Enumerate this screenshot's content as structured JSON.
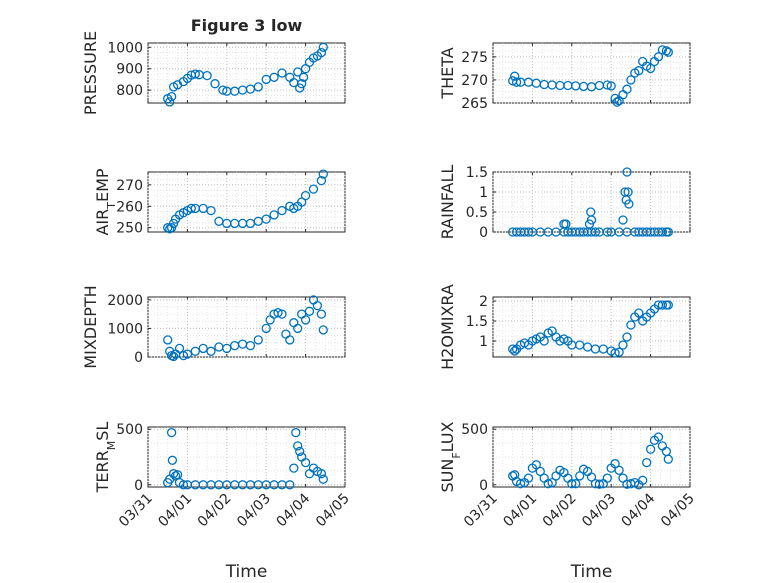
{
  "figure": {
    "title": "Figure 3 low",
    "marker_color": "#0072BD",
    "x_tick_labels": [
      "03/31",
      "04/01",
      "04/02",
      "04/03",
      "04/04",
      "04/05"
    ],
    "x_label": "Time"
  },
  "chart_data": [
    {
      "type": "scatter",
      "ylabel": "PRESSURE",
      "title": "Figure 3 low",
      "x_unit": "days since 03/31",
      "xlim": [
        0,
        5
      ],
      "ylim": [
        740,
        1020
      ],
      "yticks": [
        800,
        900,
        1000
      ],
      "yticklabels": [
        "800",
        "900",
        "1000"
      ],
      "xticklabels_shown": false,
      "grid": true,
      "series": [
        {
          "x": [
            0.5,
            0.55,
            0.6,
            0.65,
            0.75,
            0.9,
            1.0,
            1.1,
            1.2,
            1.3,
            1.5,
            1.7,
            1.9,
            2.0,
            2.2,
            2.4,
            2.6,
            2.8,
            3.0,
            3.2,
            3.4,
            3.6,
            3.7,
            3.8,
            3.85,
            3.9,
            3.95,
            4.0,
            4.1,
            4.2,
            4.3,
            4.4,
            4.45
          ],
          "y": [
            760,
            745,
            770,
            815,
            825,
            840,
            855,
            870,
            875,
            872,
            868,
            830,
            800,
            795,
            795,
            800,
            805,
            815,
            850,
            860,
            880,
            860,
            835,
            885,
            810,
            830,
            860,
            900,
            930,
            950,
            960,
            975,
            1000
          ]
        }
      ]
    },
    {
      "type": "scatter",
      "ylabel": "THETA",
      "xlim": [
        0,
        5
      ],
      "ylim": [
        265,
        278
      ],
      "yticks": [
        265,
        270,
        275
      ],
      "yticklabels": [
        "265",
        "270",
        "275"
      ],
      "xticklabels_shown": false,
      "grid": true,
      "series": [
        {
          "x": [
            0.5,
            0.55,
            0.6,
            0.7,
            0.9,
            1.1,
            1.3,
            1.5,
            1.7,
            1.9,
            2.1,
            2.3,
            2.5,
            2.7,
            2.9,
            3.0,
            3.1,
            3.15,
            3.2,
            3.3,
            3.4,
            3.5,
            3.6,
            3.7,
            3.8,
            3.9,
            4.0,
            4.1,
            4.2,
            4.3,
            4.4,
            4.45
          ],
          "y": [
            269.8,
            270.8,
            269.5,
            269.5,
            269.5,
            269.3,
            269.0,
            268.9,
            268.8,
            268.8,
            268.7,
            268.6,
            268.5,
            268.8,
            268.9,
            268.7,
            266.0,
            265.2,
            265.5,
            266.8,
            268.0,
            270.0,
            271.5,
            272.0,
            274.0,
            273.0,
            272.5,
            274.0,
            275.0,
            276.5,
            276.3,
            276.0
          ]
        }
      ]
    },
    {
      "type": "scatter",
      "ylabel": "AIR_TEMP",
      "xlim": [
        0,
        5
      ],
      "ylim": [
        248,
        276
      ],
      "yticks": [
        250,
        260,
        270
      ],
      "yticklabels": [
        "250",
        "260",
        "270"
      ],
      "xticklabels_shown": false,
      "grid": true,
      "series": [
        {
          "x": [
            0.5,
            0.55,
            0.6,
            0.65,
            0.7,
            0.8,
            0.9,
            1.0,
            1.1,
            1.2,
            1.4,
            1.6,
            1.8,
            2.0,
            2.2,
            2.4,
            2.6,
            2.8,
            3.0,
            3.2,
            3.4,
            3.6,
            3.7,
            3.8,
            3.9,
            4.0,
            4.2,
            4.4,
            4.45
          ],
          "y": [
            250,
            249.5,
            250,
            252,
            254,
            256,
            257,
            258,
            259,
            259,
            259,
            258,
            253,
            252,
            252,
            252,
            252,
            253,
            254,
            256,
            258,
            260,
            259,
            260,
            262,
            265,
            268,
            272,
            275
          ]
        }
      ]
    },
    {
      "type": "scatter",
      "ylabel": "RAINFALL",
      "xlim": [
        0,
        5
      ],
      "ylim": [
        0,
        1.5
      ],
      "yticks": [
        0,
        0.5,
        1,
        1.5
      ],
      "yticklabels": [
        "0",
        "0.5",
        "1",
        "1.5"
      ],
      "xticklabels_shown": false,
      "grid": true,
      "series": [
        {
          "x": [
            0.5,
            0.6,
            0.7,
            0.8,
            0.9,
            1.0,
            1.2,
            1.4,
            1.6,
            1.8,
            1.9,
            2.0,
            2.1,
            2.2,
            2.3,
            2.4,
            2.5,
            2.6,
            2.7,
            2.9,
            3.0,
            3.2,
            3.4,
            3.6,
            3.7,
            3.8,
            3.9,
            4.0,
            4.1,
            4.2,
            4.3,
            4.4,
            4.45,
            1.8,
            1.85,
            2.45,
            2.48,
            2.5,
            3.3,
            3.35,
            3.38,
            3.4,
            3.43,
            3.45
          ],
          "y": [
            0,
            0,
            0,
            0,
            0,
            0,
            0,
            0,
            0,
            0,
            0,
            0,
            0,
            0,
            0,
            0,
            0,
            0,
            0,
            0,
            0,
            0,
            0,
            0,
            0,
            0,
            0,
            0,
            0,
            0,
            0,
            0,
            0,
            0.2,
            0.2,
            0.2,
            0.5,
            0.3,
            0.3,
            1.0,
            0.8,
            1.5,
            1.0,
            0.7
          ]
        }
      ]
    },
    {
      "type": "scatter",
      "ylabel": "MIXDEPTH",
      "xlim": [
        0,
        5
      ],
      "ylim": [
        0,
        2100
      ],
      "yticks": [
        0,
        1000,
        2000
      ],
      "yticklabels": [
        "0",
        "1000",
        "2000"
      ],
      "xticklabels_shown": false,
      "grid": true,
      "series": [
        {
          "x": [
            0.5,
            0.55,
            0.6,
            0.65,
            0.7,
            0.8,
            0.9,
            1.0,
            1.2,
            1.4,
            1.6,
            1.8,
            2.0,
            2.2,
            2.4,
            2.6,
            2.8,
            3.0,
            3.1,
            3.2,
            3.3,
            3.4,
            3.5,
            3.6,
            3.7,
            3.8,
            3.9,
            4.0,
            4.1,
            4.2,
            4.3,
            4.4,
            4.45
          ],
          "y": [
            600,
            200,
            50,
            20,
            100,
            300,
            50,
            100,
            200,
            300,
            200,
            350,
            300,
            400,
            450,
            400,
            600,
            1000,
            1300,
            1500,
            1550,
            1500,
            800,
            600,
            1200,
            1000,
            1500,
            1300,
            1600,
            2000,
            1800,
            1500,
            950
          ]
        }
      ]
    },
    {
      "type": "scatter",
      "ylabel": "H2OMIXRA",
      "xlim": [
        0,
        5
      ],
      "ylim": [
        0.6,
        2.1
      ],
      "yticks": [
        1,
        1.5,
        2
      ],
      "yticklabels": [
        "1",
        "1.5",
        "2"
      ],
      "xticklabels_shown": false,
      "grid": true,
      "series": [
        {
          "x": [
            0.5,
            0.55,
            0.6,
            0.7,
            0.8,
            0.9,
            1.0,
            1.1,
            1.2,
            1.3,
            1.4,
            1.5,
            1.6,
            1.7,
            1.8,
            1.9,
            2.0,
            2.2,
            2.4,
            2.6,
            2.8,
            3.0,
            3.1,
            3.2,
            3.3,
            3.4,
            3.5,
            3.6,
            3.7,
            3.8,
            3.9,
            4.0,
            4.1,
            4.2,
            4.3,
            4.4,
            4.45
          ],
          "y": [
            0.8,
            0.75,
            0.8,
            0.9,
            0.95,
            0.9,
            1.0,
            1.05,
            1.1,
            1.0,
            1.2,
            1.25,
            1.1,
            1.0,
            1.05,
            1.0,
            0.9,
            0.9,
            0.85,
            0.8,
            0.8,
            0.75,
            0.7,
            0.72,
            0.9,
            1.1,
            1.4,
            1.6,
            1.7,
            1.5,
            1.6,
            1.7,
            1.8,
            1.9,
            1.9,
            1.9,
            1.9
          ]
        }
      ]
    },
    {
      "type": "scatter",
      "ylabel": "TERR_MSL",
      "xlim": [
        0,
        5
      ],
      "ylim": [
        -20,
        520
      ],
      "yticks": [
        0,
        500
      ],
      "yticklabels": [
        "0",
        "500"
      ],
      "xticklabels_shown": true,
      "xlabel": "Time",
      "grid": true,
      "series": [
        {
          "x": [
            0.5,
            0.55,
            0.6,
            0.62,
            0.65,
            0.7,
            0.75,
            0.8,
            0.9,
            1.0,
            1.2,
            1.4,
            1.6,
            1.8,
            2.0,
            2.2,
            2.4,
            2.6,
            2.8,
            3.0,
            3.2,
            3.4,
            3.6,
            3.7,
            3.75,
            3.8,
            3.85,
            3.9,
            4.0,
            4.1,
            4.2,
            4.3,
            4.4,
            4.45
          ],
          "y": [
            20,
            50,
            470,
            220,
            100,
            80,
            90,
            20,
            0,
            0,
            0,
            0,
            0,
            0,
            0,
            0,
            0,
            0,
            0,
            0,
            0,
            0,
            0,
            150,
            470,
            350,
            300,
            250,
            200,
            100,
            150,
            120,
            100,
            50
          ]
        }
      ]
    },
    {
      "type": "scatter",
      "ylabel": "SUN_FLUX",
      "xlim": [
        0,
        5
      ],
      "ylim": [
        -20,
        520
      ],
      "yticks": [
        0,
        500
      ],
      "yticklabels": [
        "0",
        "500"
      ],
      "xticklabels_shown": true,
      "xlabel": "Time",
      "grid": true,
      "series": [
        {
          "x": [
            0.5,
            0.55,
            0.6,
            0.7,
            0.8,
            0.9,
            1.0,
            1.1,
            1.2,
            1.3,
            1.4,
            1.5,
            1.6,
            1.7,
            1.8,
            1.9,
            2.0,
            2.1,
            2.2,
            2.3,
            2.4,
            2.5,
            2.6,
            2.7,
            2.8,
            2.9,
            3.0,
            3.1,
            3.2,
            3.3,
            3.4,
            3.5,
            3.6,
            3.7,
            3.8,
            3.9,
            4.0,
            4.1,
            4.2,
            4.3,
            4.4,
            4.45
          ],
          "y": [
            80,
            90,
            30,
            10,
            20,
            60,
            150,
            180,
            120,
            60,
            10,
            20,
            80,
            130,
            110,
            60,
            10,
            10,
            80,
            140,
            120,
            70,
            10,
            5,
            10,
            60,
            150,
            190,
            130,
            60,
            5,
            10,
            20,
            0,
            40,
            200,
            320,
            400,
            430,
            350,
            300,
            230
          ]
        }
      ]
    }
  ]
}
